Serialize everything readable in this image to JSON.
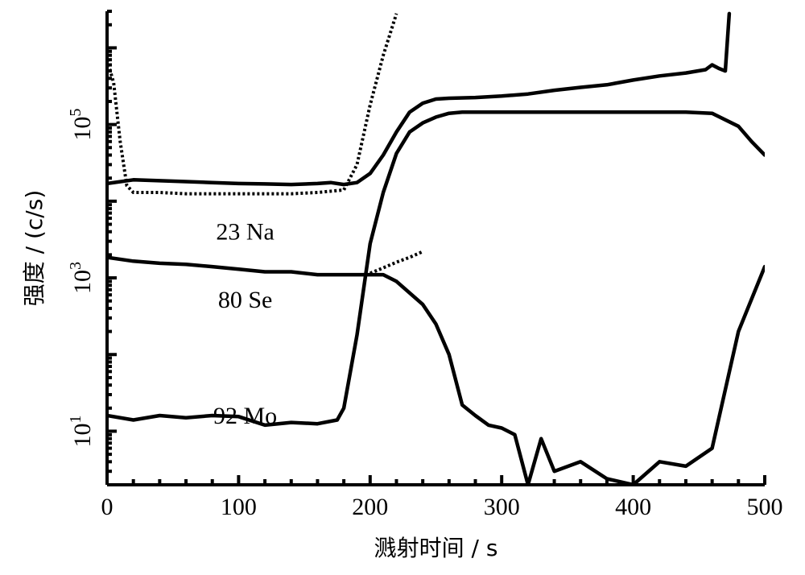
{
  "chart_data": {
    "type": "line",
    "title": "",
    "xlabel": "溅射时间 / s",
    "ylabel": "强度 / (c/s)",
    "xlim": [
      0,
      500
    ],
    "ylim": [
      2,
      3000000
    ],
    "yscale": "log",
    "xticks": [
      0,
      100,
      200,
      300,
      400,
      500
    ],
    "yticks": [
      {
        "value": 10,
        "base": "10",
        "exp": "1"
      },
      {
        "value": 1000,
        "base": "10",
        "exp": "3"
      },
      {
        "value": 100000,
        "base": "10",
        "exp": "5"
      }
    ],
    "grid": false,
    "colors": {
      "line": "#000000",
      "background": "#ffffff"
    },
    "annotations": [
      {
        "text": "23 Na",
        "x": 105,
        "y": 4000
      },
      {
        "text": "80 Se",
        "x": 105,
        "y": 520
      },
      {
        "text": "92 Mo",
        "x": 105,
        "y": 16
      }
    ],
    "series": [
      {
        "style": "solid",
        "x": [
          0,
          20,
          40,
          60,
          80,
          100,
          120,
          140,
          160,
          170,
          180,
          190,
          200,
          210,
          220,
          230,
          240,
          250,
          260,
          280,
          300,
          320,
          340,
          360,
          380,
          400,
          420,
          440,
          455,
          460,
          465,
          470,
          473
        ],
        "y": [
          17000,
          19000,
          18500,
          18000,
          17500,
          17000,
          16800,
          16500,
          17000,
          17500,
          16500,
          17500,
          23000,
          40000,
          80000,
          145000,
          190000,
          215000,
          220000,
          225000,
          235000,
          250000,
          280000,
          305000,
          330000,
          380000,
          430000,
          470000,
          520000,
          600000,
          540000,
          500000,
          2800000
        ]
      },
      {
        "style": "solid",
        "x": [
          0,
          20,
          40,
          60,
          80,
          100,
          120,
          140,
          160,
          175,
          180,
          190,
          200,
          210,
          220,
          230,
          240,
          250,
          260,
          270,
          300,
          350,
          400,
          440,
          460,
          480,
          490,
          500
        ],
        "y": [
          16,
          14,
          16,
          15,
          16,
          15.5,
          12,
          13,
          12.5,
          14,
          20,
          180,
          2800,
          13000,
          42000,
          80000,
          105000,
          125000,
          140000,
          145000,
          145000,
          145000,
          145000,
          145000,
          140000,
          95000,
          60000,
          40000
        ]
      },
      {
        "style": "solid",
        "x": [
          0,
          20,
          40,
          60,
          80,
          100,
          120,
          140,
          160,
          180,
          200,
          210,
          220,
          240,
          250,
          260,
          270,
          280,
          290,
          300,
          310,
          320,
          330,
          340,
          360,
          380,
          400,
          420,
          440,
          460,
          480,
          500
        ],
        "y": [
          1850,
          1650,
          1550,
          1500,
          1400,
          1300,
          1200,
          1200,
          1100,
          1100,
          1100,
          1100,
          900,
          450,
          250,
          100,
          22,
          16,
          12,
          11,
          9,
          2,
          8,
          3,
          4,
          2.4,
          2,
          4,
          3.5,
          6,
          200,
          1400
        ]
      },
      {
        "style": "dotted",
        "x": [
          0,
          5,
          10,
          15,
          20,
          40,
          60,
          80,
          100,
          120,
          140,
          160,
          180,
          190,
          200,
          210,
          220
        ],
        "y": [
          700000,
          350000,
          60000,
          16000,
          13000,
          13000,
          12500,
          12500,
          12500,
          12500,
          12500,
          13000,
          14000,
          30000,
          180000,
          800000,
          2800000
        ]
      },
      {
        "style": "dotted",
        "x": [
          200,
          210,
          220,
          230,
          240
        ],
        "y": [
          1150,
          1350,
          1600,
          1850,
          2200
        ]
      }
    ]
  }
}
